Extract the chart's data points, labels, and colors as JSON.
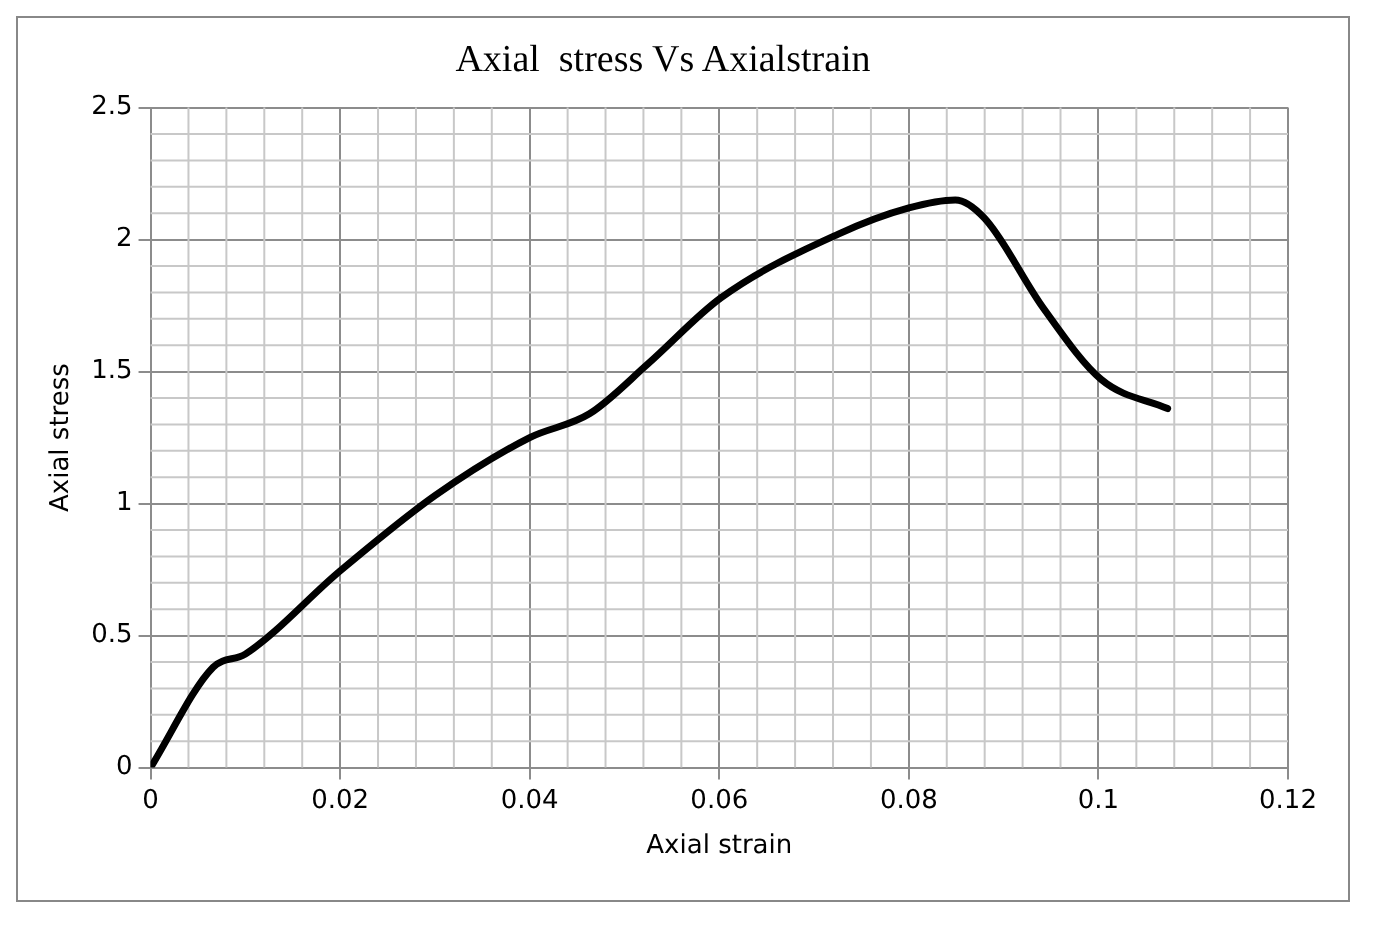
{
  "chart_data": {
    "type": "line",
    "title": "Axial  stress Vs Axialstrain",
    "xlabel": "Axial strain",
    "ylabel": "Axial stress",
    "x": [
      0,
      0.0066,
      0.01,
      0.02,
      0.03,
      0.04,
      0.0463,
      0.0525,
      0.0602,
      0.0725,
      0.08,
      0.0849,
      0.088,
      0.0942,
      0.1003,
      0.1073
    ],
    "series": [
      {
        "color": "#000000",
        "values": [
          0,
          0.38,
          0.43,
          0.745,
          1.03,
          1.25,
          1.34,
          1.53,
          1.78,
          2.02,
          2.12,
          2.15,
          2.08,
          1.74,
          1.47,
          1.36
        ]
      }
    ],
    "xlim": [
      0,
      0.12
    ],
    "xticks": [
      0,
      0.02,
      0.04,
      0.06,
      0.08,
      0.1,
      0.12
    ],
    "ylim": [
      0,
      2.5
    ],
    "yticks": [
      0,
      0.5,
      1,
      1.5,
      2,
      2.5
    ],
    "grid": true,
    "legend": false,
    "marker": "none",
    "line_style": "solid"
  }
}
